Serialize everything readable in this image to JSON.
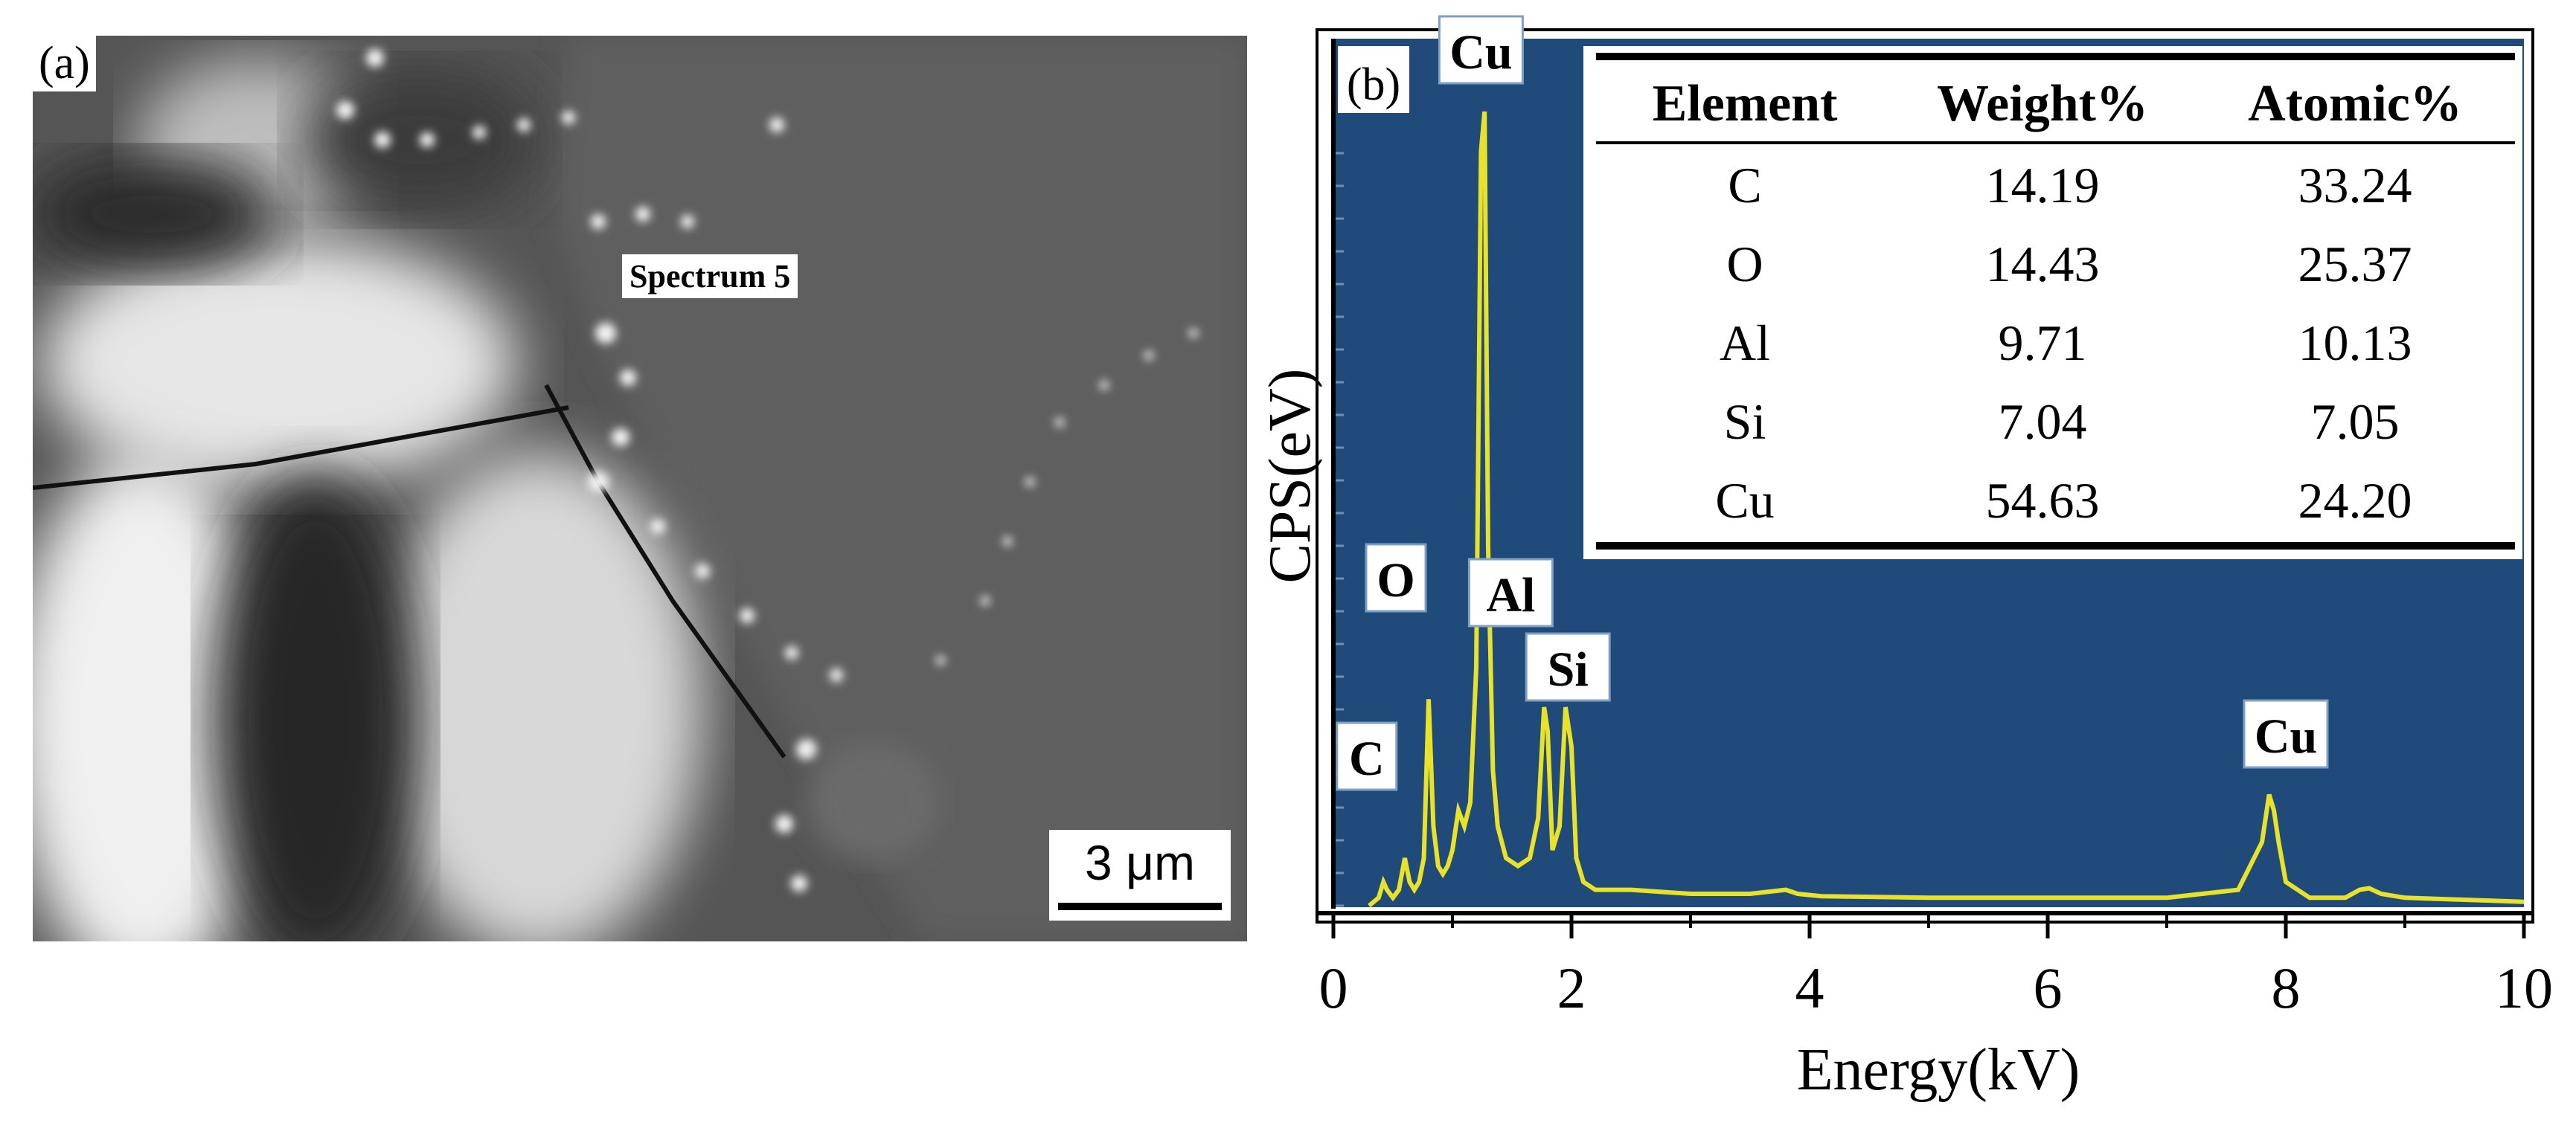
{
  "panel_a": {
    "label": "(a)",
    "spectrum_label": "Spectrum 5",
    "scale_bar": "3 μm"
  },
  "chart_data": {
    "type": "line",
    "panel_label": "(b)",
    "xlabel": "Energy(kV)",
    "ylabel": "CPS(eV)",
    "xlim": [
      0,
      10
    ],
    "x_ticks": [
      "0",
      "2",
      "4",
      "6",
      "8",
      "10"
    ],
    "background": "#1f4a7a",
    "line_color": "#e8e32a",
    "series": [
      {
        "values_rel": "relative intensity 0-1",
        "x": [
          0.3,
          0.38,
          0.42,
          0.45,
          0.5,
          0.55,
          0.6,
          0.64,
          0.68,
          0.72,
          0.76,
          0.8,
          0.84,
          0.88,
          0.92,
          0.96,
          1.0,
          1.05,
          1.1,
          1.15,
          1.2,
          1.24,
          1.27,
          1.3,
          1.34,
          1.38,
          1.45,
          1.55,
          1.65,
          1.72,
          1.77,
          1.8,
          1.84,
          1.9,
          1.95,
          2.0,
          2.04,
          2.1,
          2.2,
          2.5,
          3.0,
          3.5,
          3.8,
          3.9,
          4.1,
          5.0,
          6.0,
          7.0,
          7.6,
          7.8,
          7.86,
          7.9,
          7.94,
          8.0,
          8.2,
          8.5,
          8.62,
          8.7,
          8.8,
          9.0,
          10.0
        ],
        "y": [
          0.0,
          0.01,
          0.03,
          0.02,
          0.01,
          0.02,
          0.06,
          0.03,
          0.02,
          0.03,
          0.06,
          0.26,
          0.1,
          0.05,
          0.04,
          0.05,
          0.07,
          0.12,
          0.1,
          0.13,
          0.3,
          0.95,
          1.0,
          0.45,
          0.17,
          0.1,
          0.06,
          0.05,
          0.06,
          0.11,
          0.25,
          0.22,
          0.07,
          0.1,
          0.25,
          0.2,
          0.06,
          0.03,
          0.02,
          0.02,
          0.015,
          0.015,
          0.02,
          0.015,
          0.012,
          0.01,
          0.01,
          0.01,
          0.02,
          0.08,
          0.14,
          0.12,
          0.08,
          0.03,
          0.01,
          0.01,
          0.02,
          0.022,
          0.015,
          0.01,
          0.005
        ]
      }
    ],
    "peak_labels": [
      {
        "text": "C",
        "x": 0.28
      },
      {
        "text": "O",
        "x": 0.525
      },
      {
        "text": "Cu",
        "x": 1.24
      },
      {
        "text": "Al",
        "x": 1.49
      },
      {
        "text": "Si",
        "x": 1.97
      },
      {
        "text": "Cu",
        "x": 8.0
      }
    ],
    "table": {
      "headers": [
        "Element",
        "Weight%",
        "Atomic%"
      ],
      "rows": [
        [
          "C",
          "14.19",
          "33.24"
        ],
        [
          "O",
          "14.43",
          "25.37"
        ],
        [
          "Al",
          "9.71",
          "10.13"
        ],
        [
          "Si",
          "7.04",
          "7.05"
        ],
        [
          "Cu",
          "54.63",
          "24.20"
        ]
      ]
    }
  }
}
